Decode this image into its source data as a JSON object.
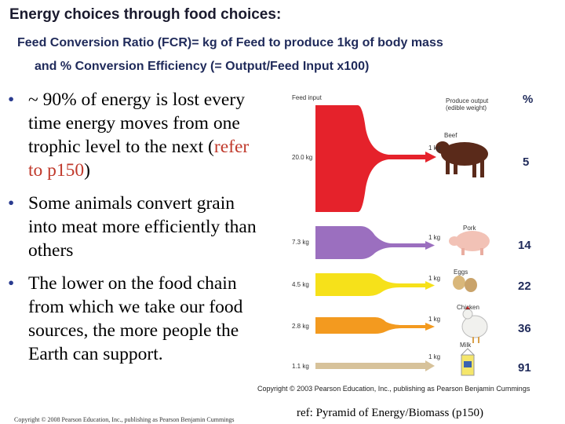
{
  "header": {
    "title": "Energy choices through food choices:",
    "subtitle_line1": "Feed Conversion Ratio (FCR)= kg of Feed to produce 1kg of body mass",
    "subtitle_line2": "and   % Conversion Efficiency (= Output/Feed Input x100)"
  },
  "bullets": {
    "b1_text": "~ 90% of energy is lost every time energy moves from one trophic level to the next (",
    "b1_ref": "refer to p150",
    "b1_close": ")",
    "b2": "Some animals convert grain into meat more efficiently than others",
    "b3": "The lower on the food chain from which we take our food sources, the more people the Earth can support."
  },
  "figure": {
    "feed_input_label": "Feed input",
    "produce_output_label": "Produce output (edible weight)",
    "rows": [
      {
        "animal": "Beef",
        "feed": "20.0 kg",
        "output": "1 kg",
        "color": "#e5222b"
      },
      {
        "animal": "Pork",
        "feed": "7.3 kg",
        "output": "1 kg",
        "color": "#9b6fbf"
      },
      {
        "animal": "Eggs",
        "feed": "4.5 kg",
        "output": "1 kg",
        "color": "#f6e11a"
      },
      {
        "animal": "Chicken",
        "feed": "2.8 kg",
        "output": "1 kg",
        "color": "#f39a1f"
      },
      {
        "animal": "Milk",
        "feed": "1.1 kg",
        "output": "1 kg",
        "color": "#d7c29a"
      }
    ],
    "copyright": "Copyright © 2003 Pearson Education, Inc., publishing as Pearson Benjamin Cummings"
  },
  "efficiency": {
    "header": "%",
    "values": [
      "5",
      "14",
      "22",
      "36",
      "91"
    ]
  },
  "ref": "ref: Pyramid of Energy/Biomass (p150)",
  "footer": "Copyright © 2008 Pearson Education, Inc., publishing as Pearson Benjamin Cummings"
}
